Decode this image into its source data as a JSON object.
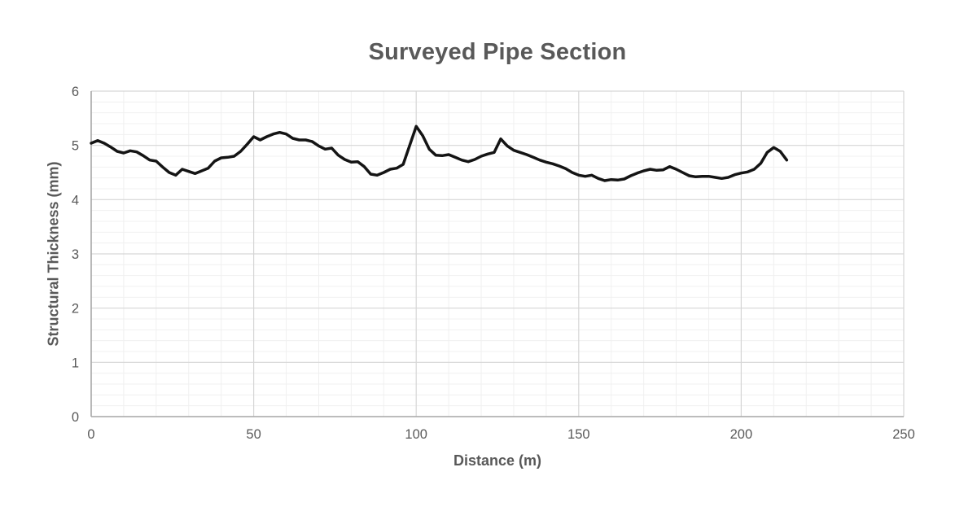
{
  "chart_data": {
    "type": "line",
    "title": "Surveyed Pipe Section",
    "xlabel": "Distance (m)",
    "ylabel": "Structural Thickness (mm)",
    "xlim": [
      0,
      250
    ],
    "ylim": [
      0,
      6
    ],
    "x_ticks": [
      0,
      50,
      100,
      150,
      200,
      250
    ],
    "y_ticks": [
      0,
      1,
      2,
      3,
      4,
      5,
      6
    ],
    "x_minor_step": 10,
    "y_minor_step": 0.2,
    "grid": "major+minor",
    "legend_position": "none",
    "series": [
      {
        "name": "Structural Thickness",
        "color": "#141414",
        "line_width": 3.5,
        "x": [
          0,
          2,
          4,
          6,
          8,
          10,
          12,
          14,
          16,
          18,
          20,
          22,
          24,
          26,
          28,
          30,
          32,
          34,
          36,
          38,
          40,
          42,
          44,
          46,
          48,
          50,
          52,
          54,
          56,
          58,
          60,
          62,
          64,
          66,
          68,
          70,
          72,
          74,
          76,
          78,
          80,
          82,
          84,
          86,
          88,
          90,
          92,
          94,
          96,
          98,
          100,
          102,
          104,
          106,
          108,
          110,
          112,
          114,
          116,
          118,
          120,
          122,
          124,
          126,
          128,
          130,
          132,
          134,
          136,
          138,
          140,
          142,
          144,
          146,
          148,
          150,
          152,
          154,
          156,
          158,
          160,
          162,
          164,
          166,
          168,
          170,
          172,
          174,
          176,
          178,
          180,
          182,
          184,
          186,
          188,
          190,
          192,
          194,
          196,
          198,
          200,
          202,
          204,
          206,
          208,
          210,
          212,
          214
        ],
        "y": [
          5.04,
          5.09,
          5.04,
          4.97,
          4.89,
          4.86,
          4.9,
          4.88,
          4.81,
          4.73,
          4.71,
          4.6,
          4.5,
          4.45,
          4.56,
          4.52,
          4.48,
          4.53,
          4.58,
          4.71,
          4.77,
          4.78,
          4.8,
          4.89,
          5.02,
          5.16,
          5.1,
          5.16,
          5.21,
          5.24,
          5.21,
          5.13,
          5.1,
          5.1,
          5.07,
          4.99,
          4.93,
          4.95,
          4.82,
          4.74,
          4.69,
          4.7,
          4.61,
          4.47,
          4.45,
          4.5,
          4.56,
          4.58,
          4.65,
          5.0,
          5.35,
          5.18,
          4.93,
          4.82,
          4.81,
          4.83,
          4.78,
          4.73,
          4.7,
          4.74,
          4.8,
          4.84,
          4.87,
          5.12,
          4.99,
          4.91,
          4.87,
          4.83,
          4.78,
          4.73,
          4.69,
          4.66,
          4.62,
          4.57,
          4.5,
          4.45,
          4.43,
          4.45,
          4.39,
          4.35,
          4.37,
          4.36,
          4.38,
          4.44,
          4.49,
          4.53,
          4.56,
          4.54,
          4.55,
          4.61,
          4.56,
          4.5,
          4.44,
          4.42,
          4.43,
          4.43,
          4.41,
          4.39,
          4.41,
          4.46,
          4.49,
          4.51,
          4.56,
          4.67,
          4.87,
          4.96,
          4.89,
          4.73
        ]
      }
    ]
  },
  "style": {
    "background": "#ffffff",
    "title_color": "#595959",
    "axis_title_color": "#595959",
    "tick_label_color": "#595959",
    "major_grid_color": "#d6d6d6",
    "minor_grid_color": "#f0f0f0",
    "axis_line_color": "#a9a9a9"
  }
}
